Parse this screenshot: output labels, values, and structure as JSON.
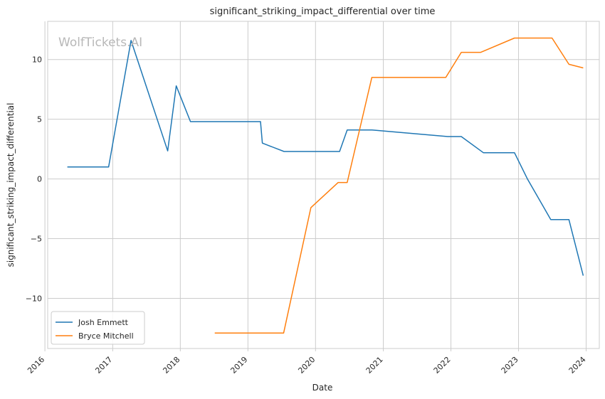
{
  "watermark": "WolfTickets.AI",
  "chart_data": {
    "type": "line",
    "title": "significant_striking_impact_differential over time",
    "xlabel": "Date",
    "ylabel": "significant_striking_impact_differential",
    "xlim": [
      "2016-01-16",
      "2024-03-12"
    ],
    "ylim": [
      -14.2,
      13.2
    ],
    "x_ticks": [
      "2016",
      "2017",
      "2018",
      "2019",
      "2020",
      "2021",
      "2022",
      "2023",
      "2024"
    ],
    "y_ticks": [
      -10,
      -5,
      0,
      5,
      10
    ],
    "y_tick_labels": [
      "−10",
      "−5",
      "0",
      "5",
      "10"
    ],
    "grid": true,
    "legend_position": "lower-left",
    "series": [
      {
        "name": "Josh Emmett",
        "color": "#1f77b4",
        "points": [
          [
            "2016-05-01",
            1.0
          ],
          [
            "2016-12-10",
            1.0
          ],
          [
            "2017-04-10",
            11.6
          ],
          [
            "2017-10-25",
            2.35
          ],
          [
            "2017-12-10",
            7.8
          ],
          [
            "2018-02-25",
            4.8
          ],
          [
            "2019-03-10",
            4.8
          ],
          [
            "2019-03-20",
            3.0
          ],
          [
            "2019-07-15",
            2.3
          ],
          [
            "2020-05-10",
            2.3
          ],
          [
            "2020-06-20",
            4.1
          ],
          [
            "2020-11-01",
            4.1
          ],
          [
            "2021-12-15",
            3.55
          ],
          [
            "2022-02-26",
            3.55
          ],
          [
            "2022-06-25",
            2.2
          ],
          [
            "2022-12-10",
            2.2
          ],
          [
            "2023-02-18",
            0.0
          ],
          [
            "2023-06-24",
            -3.4
          ],
          [
            "2023-09-30",
            -3.4
          ],
          [
            "2023-12-16",
            -8.1
          ]
        ]
      },
      {
        "name": "Bryce Mitchell",
        "color": "#ff7f0e",
        "points": [
          [
            "2018-07-06",
            -12.9
          ],
          [
            "2019-07-13",
            -12.9
          ],
          [
            "2019-12-07",
            -2.4
          ],
          [
            "2020-05-02",
            -0.3
          ],
          [
            "2020-06-20",
            -0.3
          ],
          [
            "2020-10-31",
            8.5
          ],
          [
            "2021-12-04",
            8.5
          ],
          [
            "2022-02-26",
            10.6
          ],
          [
            "2022-06-11",
            10.6
          ],
          [
            "2022-12-10",
            11.8
          ],
          [
            "2023-07-01",
            11.8
          ],
          [
            "2023-09-30",
            9.6
          ],
          [
            "2023-12-16",
            9.3
          ]
        ]
      }
    ]
  }
}
